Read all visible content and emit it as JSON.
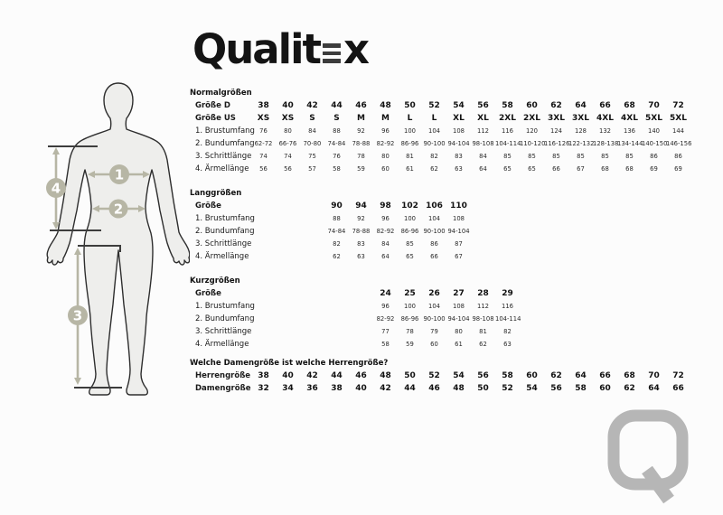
{
  "logo": {
    "part1": "Qualit",
    "part2": "x"
  },
  "figure": {
    "markers": [
      "1",
      "2",
      "3",
      "4"
    ]
  },
  "watermark": {
    "letter": "Q"
  },
  "colors": {
    "accent_sage": "#b7b6a5",
    "watermark_gray": "#b6b6b6",
    "text": "#141414"
  },
  "tables": [
    {
      "title": "Normalgrößen",
      "rows": [
        {
          "label": "Größe D",
          "bold": true,
          "start": 0,
          "values": [
            "38",
            "40",
            "42",
            "44",
            "46",
            "48",
            "50",
            "52",
            "54",
            "56",
            "58",
            "60",
            "62",
            "64",
            "66",
            "68",
            "70",
            "72"
          ]
        },
        {
          "label": "Größe US",
          "bold": true,
          "start": 0,
          "values": [
            "XS",
            "XS",
            "S",
            "S",
            "M",
            "M",
            "L",
            "L",
            "XL",
            "XL",
            "2XL",
            "2XL",
            "3XL",
            "3XL",
            "4XL",
            "4XL",
            "5XL",
            "5XL"
          ]
        },
        {
          "label": "1. Brustumfang",
          "bold": false,
          "start": 0,
          "values": [
            "76",
            "80",
            "84",
            "88",
            "92",
            "96",
            "100",
            "104",
            "108",
            "112",
            "116",
            "120",
            "124",
            "128",
            "132",
            "136",
            "140",
            "144"
          ]
        },
        {
          "label": "2. Bundumfang",
          "bold": false,
          "start": 0,
          "values": [
            "62-72",
            "66-76",
            "70-80",
            "74-84",
            "78-88",
            "82-92",
            "86-96",
            "90-100",
            "94-104",
            "98-108",
            "104-114",
            "110-120",
            "116-126",
            "122-132",
            "128-138",
            "134-144",
            "140-150",
            "146-156"
          ]
        },
        {
          "label": "3. Schrittlänge",
          "bold": false,
          "start": 0,
          "values": [
            "74",
            "74",
            "75",
            "76",
            "78",
            "80",
            "81",
            "82",
            "83",
            "84",
            "85",
            "85",
            "85",
            "85",
            "85",
            "85",
            "86",
            "86"
          ]
        },
        {
          "label": "4. Ärmellänge",
          "bold": false,
          "start": 0,
          "values": [
            "56",
            "56",
            "57",
            "58",
            "59",
            "60",
            "61",
            "62",
            "63",
            "64",
            "65",
            "65",
            "66",
            "67",
            "68",
            "68",
            "69",
            "69"
          ]
        }
      ]
    },
    {
      "title": "Langgrößen",
      "rows": [
        {
          "label": "Größe",
          "bold": true,
          "start": 3,
          "values": [
            "90",
            "94",
            "98",
            "102",
            "106",
            "110"
          ]
        },
        {
          "label": "1. Brustumfang",
          "bold": false,
          "start": 3,
          "values": [
            "88",
            "92",
            "96",
            "100",
            "104",
            "108"
          ]
        },
        {
          "label": "2. Bundumfang",
          "bold": false,
          "start": 3,
          "values": [
            "74-84",
            "78-88",
            "82-92",
            "86-96",
            "90-100",
            "94-104"
          ]
        },
        {
          "label": "3. Schrittlänge",
          "bold": false,
          "start": 3,
          "values": [
            "82",
            "83",
            "84",
            "85",
            "86",
            "87"
          ]
        },
        {
          "label": "4. Ärmellänge",
          "bold": false,
          "start": 3,
          "values": [
            "62",
            "63",
            "64",
            "65",
            "66",
            "67"
          ]
        }
      ]
    },
    {
      "title": "Kurzgrößen",
      "rows": [
        {
          "label": "Größe",
          "bold": true,
          "start": 5,
          "values": [
            "24",
            "25",
            "26",
            "27",
            "28",
            "29"
          ]
        },
        {
          "label": "1. Brustumfang",
          "bold": false,
          "start": 5,
          "values": [
            "96",
            "100",
            "104",
            "108",
            "112",
            "116"
          ]
        },
        {
          "label": "2. Bundumfang",
          "bold": false,
          "start": 5,
          "values": [
            "82-92",
            "86-96",
            "90-100",
            "94-104",
            "98-108",
            "104-114"
          ]
        },
        {
          "label": "3. Schrittlänge",
          "bold": false,
          "start": 5,
          "values": [
            "77",
            "78",
            "79",
            "80",
            "81",
            "82"
          ]
        },
        {
          "label": "4. Ärmellänge",
          "bold": false,
          "start": 5,
          "values": [
            "58",
            "59",
            "60",
            "61",
            "62",
            "63"
          ]
        }
      ]
    },
    {
      "title": "Welche Damengröße ist welche Herrengröße?",
      "rows": [
        {
          "label": "Herrengröße",
          "bold": true,
          "start": 0,
          "values": [
            "38",
            "40",
            "42",
            "44",
            "46",
            "48",
            "50",
            "52",
            "54",
            "56",
            "58",
            "60",
            "62",
            "64",
            "66",
            "68",
            "70",
            "72"
          ]
        },
        {
          "label": "Damengröße",
          "bold": true,
          "start": 0,
          "values": [
            "32",
            "34",
            "36",
            "38",
            "40",
            "42",
            "44",
            "46",
            "48",
            "50",
            "52",
            "54",
            "56",
            "58",
            "60",
            "62",
            "64",
            "66"
          ]
        }
      ]
    }
  ]
}
